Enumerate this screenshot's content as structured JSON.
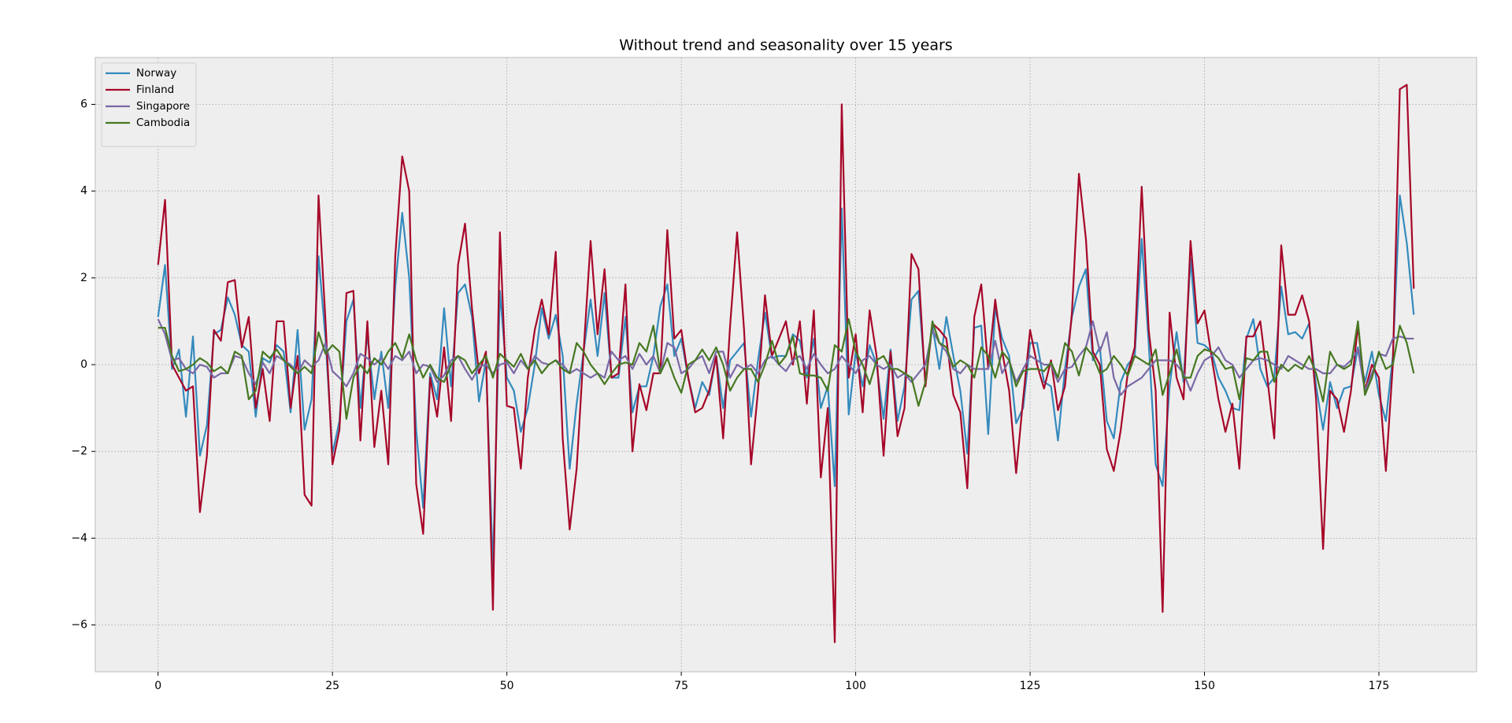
{
  "chart_data": {
    "type": "line",
    "title": "Without trend and seasonality over 15 years",
    "x": [
      0,
      1,
      2,
      3,
      4,
      5,
      6,
      7,
      8,
      9,
      10,
      11,
      12,
      13,
      14,
      15,
      16,
      17,
      18,
      19,
      20,
      21,
      22,
      23,
      24,
      25,
      26,
      27,
      28,
      29,
      30,
      31,
      32,
      33,
      34,
      35,
      36,
      37,
      38,
      39,
      40,
      41,
      42,
      43,
      44,
      45,
      46,
      47,
      48,
      49,
      50,
      51,
      52,
      53,
      54,
      55,
      56,
      57,
      58,
      59,
      60,
      61,
      62,
      63,
      64,
      65,
      66,
      67,
      68,
      69,
      70,
      71,
      72,
      73,
      74,
      75,
      76,
      77,
      78,
      79,
      80,
      81,
      82,
      83,
      84,
      85,
      86,
      87,
      88,
      89,
      90,
      91,
      92,
      93,
      94,
      95,
      96,
      97,
      98,
      99,
      100,
      101,
      102,
      103,
      104,
      105,
      106,
      107,
      108,
      109,
      110,
      111,
      112,
      113,
      114,
      115,
      116,
      117,
      118,
      119,
      120,
      121,
      122,
      123,
      124,
      125,
      126,
      127,
      128,
      129,
      130,
      131,
      132,
      133,
      134,
      135,
      136,
      137,
      138,
      139,
      140,
      141,
      142,
      143,
      144,
      145,
      146,
      147,
      148,
      149,
      150,
      151,
      152,
      153,
      154,
      155,
      156,
      157,
      158,
      159,
      160,
      161,
      162,
      163,
      164,
      165,
      166,
      167,
      168,
      169,
      170,
      171,
      172,
      173,
      174,
      175,
      176,
      177,
      178,
      179,
      180
    ],
    "series": [
      {
        "name": "Norway",
        "color": "#348abd",
        "values": [
          1.1,
          2.3,
          -0.1,
          0.35,
          -1.2,
          0.65,
          -2.1,
          -1.4,
          0.7,
          0.8,
          1.55,
          1.15,
          0.45,
          0.3,
          -1.2,
          0.15,
          0.05,
          0.45,
          0.3,
          -1.1,
          0.8,
          -1.5,
          -0.8,
          2.5,
          0.6,
          -2.05,
          -1.3,
          1.0,
          1.5,
          -1.0,
          0.7,
          -0.8,
          0.3,
          -1.0,
          1.8,
          3.5,
          2.0,
          -1.5,
          -3.3,
          -0.2,
          -0.8,
          1.3,
          -0.5,
          1.65,
          1.85,
          1.1,
          -0.85,
          0.1,
          -4.7,
          1.7,
          -0.3,
          -0.6,
          -1.55,
          -1.0,
          0.0,
          1.3,
          0.6,
          1.15,
          0.2,
          -2.4,
          -0.9,
          0.3,
          1.5,
          0.2,
          1.65,
          -0.3,
          -0.3,
          1.1,
          -1.1,
          -0.5,
          -0.5,
          0.2,
          1.35,
          1.85,
          0.2,
          0.6,
          -0.3,
          -1.0,
          -0.4,
          -0.7,
          0.2,
          -1.0,
          0.1,
          0.3,
          0.5,
          -1.2,
          0.1,
          1.2,
          0.15,
          0.2,
          0.2,
          0.7,
          0.55,
          -0.3,
          0.6,
          -1.0,
          -0.5,
          -2.8,
          3.6,
          -1.15,
          0.3,
          -0.5,
          0.45,
          0.0,
          -1.25,
          0.35,
          -1.3,
          -0.5,
          1.5,
          1.7,
          -0.4,
          0.9,
          -0.1,
          1.1,
          0.2,
          -0.6,
          -2.05,
          0.85,
          0.9,
          -1.6,
          1.3,
          0.6,
          0.2,
          -1.35,
          -1.0,
          0.5,
          0.5,
          -0.4,
          -0.5,
          -1.75,
          -0.1,
          1.1,
          1.8,
          2.2,
          0.1,
          0.4,
          -1.3,
          -1.7,
          -0.4,
          0.0,
          0.2,
          2.9,
          0.5,
          -2.3,
          -2.8,
          -0.5,
          0.75,
          -0.4,
          2.45,
          0.5,
          0.45,
          0.3,
          -0.3,
          -0.6,
          -1.0,
          -1.05,
          0.6,
          1.05,
          -0.1,
          -0.5,
          -0.3,
          1.8,
          0.7,
          0.75,
          0.6,
          0.95,
          -0.5,
          -1.5,
          -0.4,
          -1.0,
          -0.55,
          -0.5,
          0.4,
          -0.4,
          0.3,
          -0.7,
          -1.3,
          0.2,
          3.9,
          2.8,
          1.15
        ]
      },
      {
        "name": "Finland",
        "color": "#a60628",
        "values": [
          2.3,
          3.8,
          0.0,
          -0.3,
          -0.6,
          -0.5,
          -3.4,
          -2.1,
          0.8,
          0.55,
          1.9,
          1.95,
          0.4,
          1.1,
          -1.0,
          -0.1,
          -1.3,
          1.0,
          1.0,
          -1.0,
          0.2,
          -3.0,
          -3.25,
          3.9,
          1.0,
          -2.3,
          -1.5,
          1.65,
          1.7,
          -1.75,
          1.0,
          -1.9,
          -0.6,
          -2.3,
          2.5,
          4.8,
          4.0,
          -2.75,
          -3.9,
          -0.3,
          -1.2,
          0.4,
          -1.3,
          2.3,
          3.25,
          1.3,
          -0.2,
          0.3,
          -5.65,
          3.05,
          -0.95,
          -1.0,
          -2.4,
          -0.3,
          0.8,
          1.5,
          0.7,
          2.6,
          -1.7,
          -3.8,
          -2.4,
          0.3,
          2.85,
          0.7,
          2.2,
          -0.3,
          -0.2,
          1.85,
          -2.0,
          -0.45,
          -1.05,
          -0.2,
          -0.2,
          3.1,
          0.6,
          0.8,
          -0.3,
          -1.1,
          -1.0,
          -0.6,
          0.2,
          -1.7,
          0.9,
          3.05,
          0.8,
          -2.3,
          -0.6,
          1.6,
          0.2,
          0.6,
          1.0,
          0.0,
          1.0,
          -0.9,
          1.25,
          -2.6,
          -1.0,
          -6.4,
          6.0,
          -0.3,
          0.7,
          -1.1,
          1.25,
          0.2,
          -2.1,
          0.3,
          -1.65,
          -1.0,
          2.55,
          2.2,
          -0.5,
          0.95,
          0.8,
          0.6,
          -0.7,
          -1.1,
          -2.85,
          1.1,
          1.85,
          -0.1,
          1.5,
          0.3,
          -0.6,
          -2.5,
          -0.8,
          0.8,
          0.0,
          -0.55,
          0.1,
          -1.05,
          -0.5,
          1.2,
          4.4,
          2.9,
          0.3,
          0.0,
          -1.95,
          -2.45,
          -1.5,
          -0.2,
          0.4,
          4.1,
          0.8,
          -0.6,
          -5.7,
          1.2,
          -0.3,
          -0.8,
          2.85,
          0.95,
          1.25,
          0.2,
          -0.8,
          -1.55,
          -0.9,
          -2.4,
          0.65,
          0.65,
          1.0,
          -0.3,
          -1.7,
          2.75,
          1.15,
          1.15,
          1.6,
          1.0,
          -0.8,
          -4.25,
          -0.6,
          -0.8,
          -1.55,
          -0.6,
          0.9,
          -0.6,
          0.0,
          -0.3,
          -2.45,
          0.0,
          6.35,
          6.45,
          1.75
        ]
      },
      {
        "name": "Singapore",
        "color": "#7a68a6",
        "values": [
          1.05,
          0.7,
          0.1,
          0.15,
          -0.1,
          -0.2,
          0.0,
          -0.05,
          -0.3,
          -0.2,
          -0.2,
          0.2,
          0.15,
          -0.2,
          -0.45,
          0.05,
          -0.2,
          0.2,
          0.1,
          0.0,
          -0.2,
          0.1,
          -0.05,
          0.1,
          0.5,
          -0.15,
          -0.3,
          -0.5,
          -0.2,
          0.25,
          0.15,
          0.0,
          0.15,
          -0.1,
          0.2,
          0.1,
          0.3,
          -0.2,
          0.0,
          -0.05,
          -0.4,
          -0.25,
          0.1,
          0.2,
          -0.1,
          -0.35,
          -0.05,
          0.0,
          -0.2,
          0.0,
          0.05,
          -0.2,
          0.1,
          -0.1,
          0.2,
          0.05,
          0.0,
          0.1,
          0.0,
          -0.2,
          -0.1,
          -0.2,
          -0.3,
          -0.2,
          -0.3,
          0.3,
          0.1,
          0.2,
          -0.1,
          0.25,
          0.0,
          0.2,
          -0.2,
          0.5,
          0.4,
          -0.2,
          -0.1,
          0.1,
          0.2,
          -0.2,
          0.3,
          0.3,
          -0.3,
          0.0,
          -0.1,
          0.0,
          -0.2,
          0.1,
          0.2,
          0.0,
          -0.15,
          0.1,
          0.2,
          -0.1,
          0.25,
          0.0,
          -0.2,
          -0.1,
          0.2,
          0.0,
          -0.2,
          0.1,
          0.2,
          0.0,
          -0.1,
          0.0,
          -0.3,
          -0.2,
          -0.4,
          -0.2,
          0.0,
          0.8,
          0.5,
          0.3,
          -0.1,
          -0.2,
          0.0,
          -0.1,
          -0.1,
          -0.1,
          0.55,
          -0.2,
          0.1,
          -0.4,
          -0.1,
          0.2,
          0.1,
          0.0,
          0.0,
          -0.4,
          -0.1,
          -0.05,
          0.2,
          0.4,
          1.0,
          0.3,
          0.75,
          -0.3,
          -0.7,
          -0.5,
          -0.4,
          -0.3,
          -0.1,
          0.1,
          0.1,
          0.1,
          0.0,
          -0.2,
          -0.6,
          -0.2,
          0.1,
          0.2,
          0.4,
          0.1,
          0.0,
          -0.3,
          -0.1,
          0.1,
          0.15,
          0.1,
          0.0,
          -0.1,
          0.2,
          0.1,
          0.0,
          -0.1,
          -0.1,
          -0.2,
          -0.2,
          0.0,
          -0.05,
          0.1,
          0.35,
          -0.6,
          -0.2,
          0.25,
          0.2,
          0.6,
          0.65,
          0.6,
          0.6
        ]
      },
      {
        "name": "Cambodia",
        "color": "#467821",
        "values": [
          0.85,
          0.85,
          0.2,
          -0.15,
          -0.1,
          0.0,
          0.15,
          0.05,
          -0.15,
          -0.05,
          -0.2,
          0.3,
          0.2,
          -0.8,
          -0.6,
          0.3,
          0.15,
          0.35,
          0.1,
          -0.05,
          -0.2,
          -0.05,
          -0.2,
          0.75,
          0.25,
          0.45,
          0.3,
          -1.25,
          -0.3,
          0.0,
          -0.2,
          0.15,
          0.0,
          0.3,
          0.5,
          0.15,
          0.7,
          0.1,
          -0.3,
          0.0,
          -0.3,
          -0.4,
          0.0,
          0.2,
          0.1,
          -0.2,
          0.0,
          0.2,
          -0.3,
          0.25,
          0.1,
          -0.05,
          0.25,
          -0.1,
          0.1,
          -0.2,
          0.0,
          0.1,
          -0.1,
          -0.2,
          0.5,
          0.3,
          0.0,
          -0.2,
          -0.45,
          -0.2,
          0.0,
          0.05,
          0.0,
          0.5,
          0.3,
          0.9,
          -0.2,
          0.15,
          -0.3,
          -0.65,
          0.0,
          0.1,
          0.35,
          0.1,
          0.4,
          0.0,
          -0.6,
          -0.3,
          -0.1,
          -0.1,
          -0.4,
          0.0,
          0.55,
          0.0,
          0.2,
          0.65,
          -0.2,
          -0.25,
          -0.25,
          -0.3,
          -0.6,
          0.45,
          0.3,
          1.05,
          0.3,
          0.0,
          -0.45,
          0.1,
          0.2,
          -0.1,
          -0.1,
          -0.2,
          -0.3,
          -0.95,
          -0.4,
          1.0,
          0.5,
          0.4,
          -0.05,
          0.1,
          0.0,
          -0.3,
          0.4,
          0.2,
          -0.3,
          0.3,
          0.1,
          -0.5,
          -0.15,
          -0.1,
          -0.1,
          -0.15,
          0.05,
          -0.3,
          0.5,
          0.3,
          -0.25,
          0.4,
          0.2,
          -0.2,
          -0.1,
          0.2,
          0.0,
          -0.25,
          0.2,
          0.1,
          0.0,
          0.35,
          -0.7,
          -0.2,
          0.35,
          -0.3,
          -0.3,
          0.2,
          0.35,
          0.3,
          0.15,
          -0.1,
          -0.05,
          -0.8,
          0.15,
          0.1,
          0.3,
          0.3,
          -0.4,
          0.0,
          -0.15,
          0.0,
          -0.1,
          0.2,
          -0.2,
          -0.85,
          0.3,
          0.0,
          -0.1,
          0.0,
          1.0,
          -0.7,
          -0.3,
          0.3,
          -0.1,
          0.0,
          0.9,
          0.5,
          -0.2
        ]
      }
    ],
    "xlim": [
      -9,
      189
    ],
    "ylim": [
      -7.08,
      7.08
    ],
    "xticks": [
      0,
      25,
      50,
      75,
      100,
      125,
      150,
      175
    ],
    "yticks": [
      {
        "value": -6,
        "label": "−6"
      },
      {
        "value": -4,
        "label": "−4"
      },
      {
        "value": -2,
        "label": "−2"
      },
      0,
      2,
      4,
      6
    ],
    "grid": true,
    "legend": "upper left"
  }
}
